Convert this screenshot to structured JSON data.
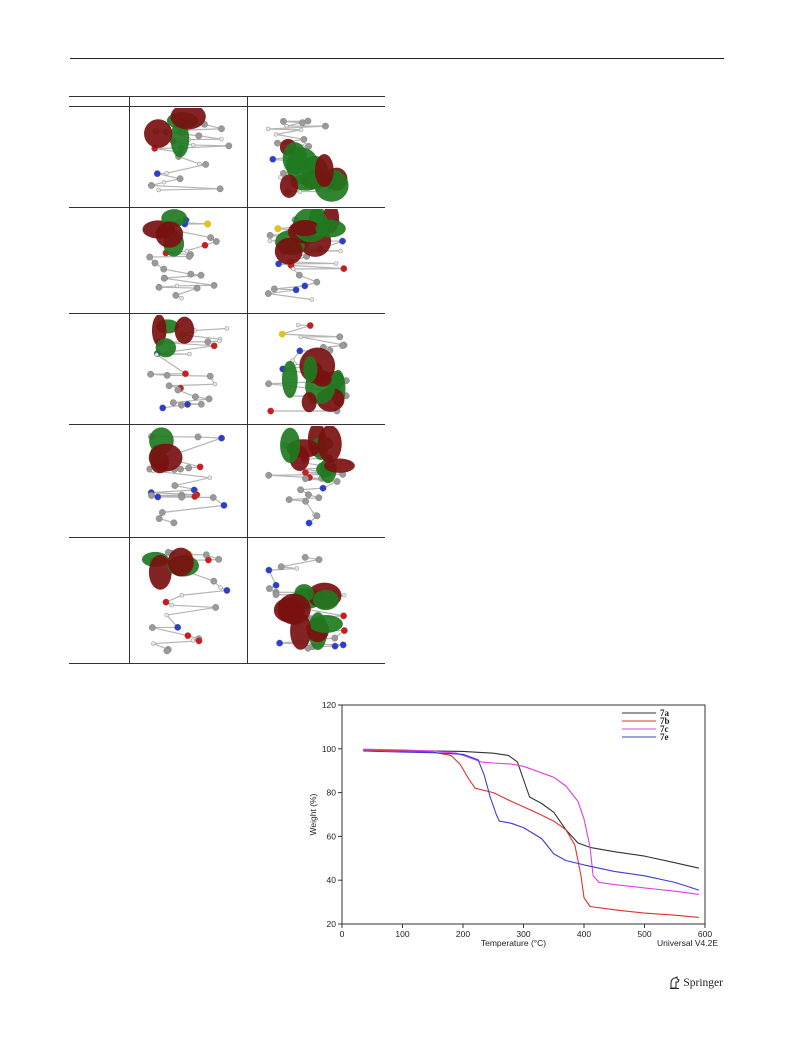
{
  "publisher": {
    "name": "Springer",
    "icon": "springer-horse-icon"
  },
  "figure_table": {
    "columns": [
      "",
      "",
      ""
    ],
    "rows": [
      {
        "label": "",
        "homo": "homo-orbital-7a",
        "lumo": "lumo-orbital-7a"
      },
      {
        "label": "",
        "homo": "homo-orbital-7b",
        "lumo": "lumo-orbital-7b"
      },
      {
        "label": "",
        "homo": "homo-orbital-7c",
        "lumo": "lumo-orbital-7c"
      },
      {
        "label": "",
        "homo": "homo-orbital-7d",
        "lumo": "lumo-orbital-7d"
      },
      {
        "label": "",
        "homo": "homo-orbital-7e",
        "lumo": "lumo-orbital-7e"
      }
    ],
    "colors": {
      "lobe_positive": "#1f7a1f",
      "lobe_negative": "#7a1010",
      "carbon": "#9a9a9a",
      "nitrogen": "#2a3fd1",
      "oxygen": "#d11a1a",
      "sulfur": "#e3c21a",
      "hydrogen": "#e6e6e6"
    }
  },
  "chart_data": {
    "type": "line",
    "title": "",
    "xlabel": "Temperature (°C)",
    "ylabel": "Weight (%)",
    "xlim": [
      0,
      600
    ],
    "ylim": [
      20,
      120
    ],
    "xticks": [
      0,
      100,
      200,
      300,
      400,
      500,
      600
    ],
    "yticks": [
      20,
      40,
      60,
      80,
      100,
      120
    ],
    "grid": false,
    "legend_position": "top-right",
    "footer": "Universal V4.2E",
    "series": [
      {
        "name": "7a",
        "color": "#333333",
        "x": [
          35,
          100,
          200,
          250,
          275,
          290,
          300,
          310,
          330,
          350,
          370,
          390,
          410,
          450,
          500,
          550,
          590
        ],
        "y": [
          99.5,
          99.2,
          98.8,
          98,
          97,
          94,
          86,
          78,
          75,
          71,
          63,
          57,
          55,
          53,
          51,
          48,
          45.5
        ]
      },
      {
        "name": "7b",
        "color": "#e03030",
        "x": [
          35,
          100,
          150,
          180,
          195,
          210,
          220,
          250,
          280,
          320,
          350,
          370,
          385,
          395,
          400,
          410,
          450,
          500,
          550,
          590
        ],
        "y": [
          99.5,
          99,
          98.5,
          97,
          93,
          86,
          82,
          80,
          76,
          71,
          67,
          63,
          56,
          42,
          32,
          28,
          26.5,
          25,
          24,
          23
        ]
      },
      {
        "name": "7c",
        "color": "#e040e0",
        "x": [
          35,
          100,
          150,
          190,
          210,
          230,
          250,
          280,
          300,
          320,
          350,
          370,
          390,
          400,
          410,
          415,
          425,
          450,
          500,
          550,
          590
        ],
        "y": [
          99.8,
          99.5,
          99,
          98,
          96,
          94,
          93.5,
          93,
          92,
          90,
          87,
          83,
          76,
          68,
          55,
          42,
          39,
          38,
          36.5,
          35,
          33.5
        ]
      },
      {
        "name": "7e",
        "color": "#3b3bd9",
        "x": [
          35,
          100,
          150,
          200,
          225,
          235,
          245,
          255,
          260,
          280,
          300,
          330,
          350,
          370,
          400,
          450,
          500,
          550,
          590
        ],
        "y": [
          99,
          98.5,
          98.2,
          97.5,
          95,
          88,
          78,
          70,
          67,
          66,
          64,
          59,
          52,
          49,
          47,
          44,
          42,
          39,
          35.5
        ]
      }
    ]
  }
}
